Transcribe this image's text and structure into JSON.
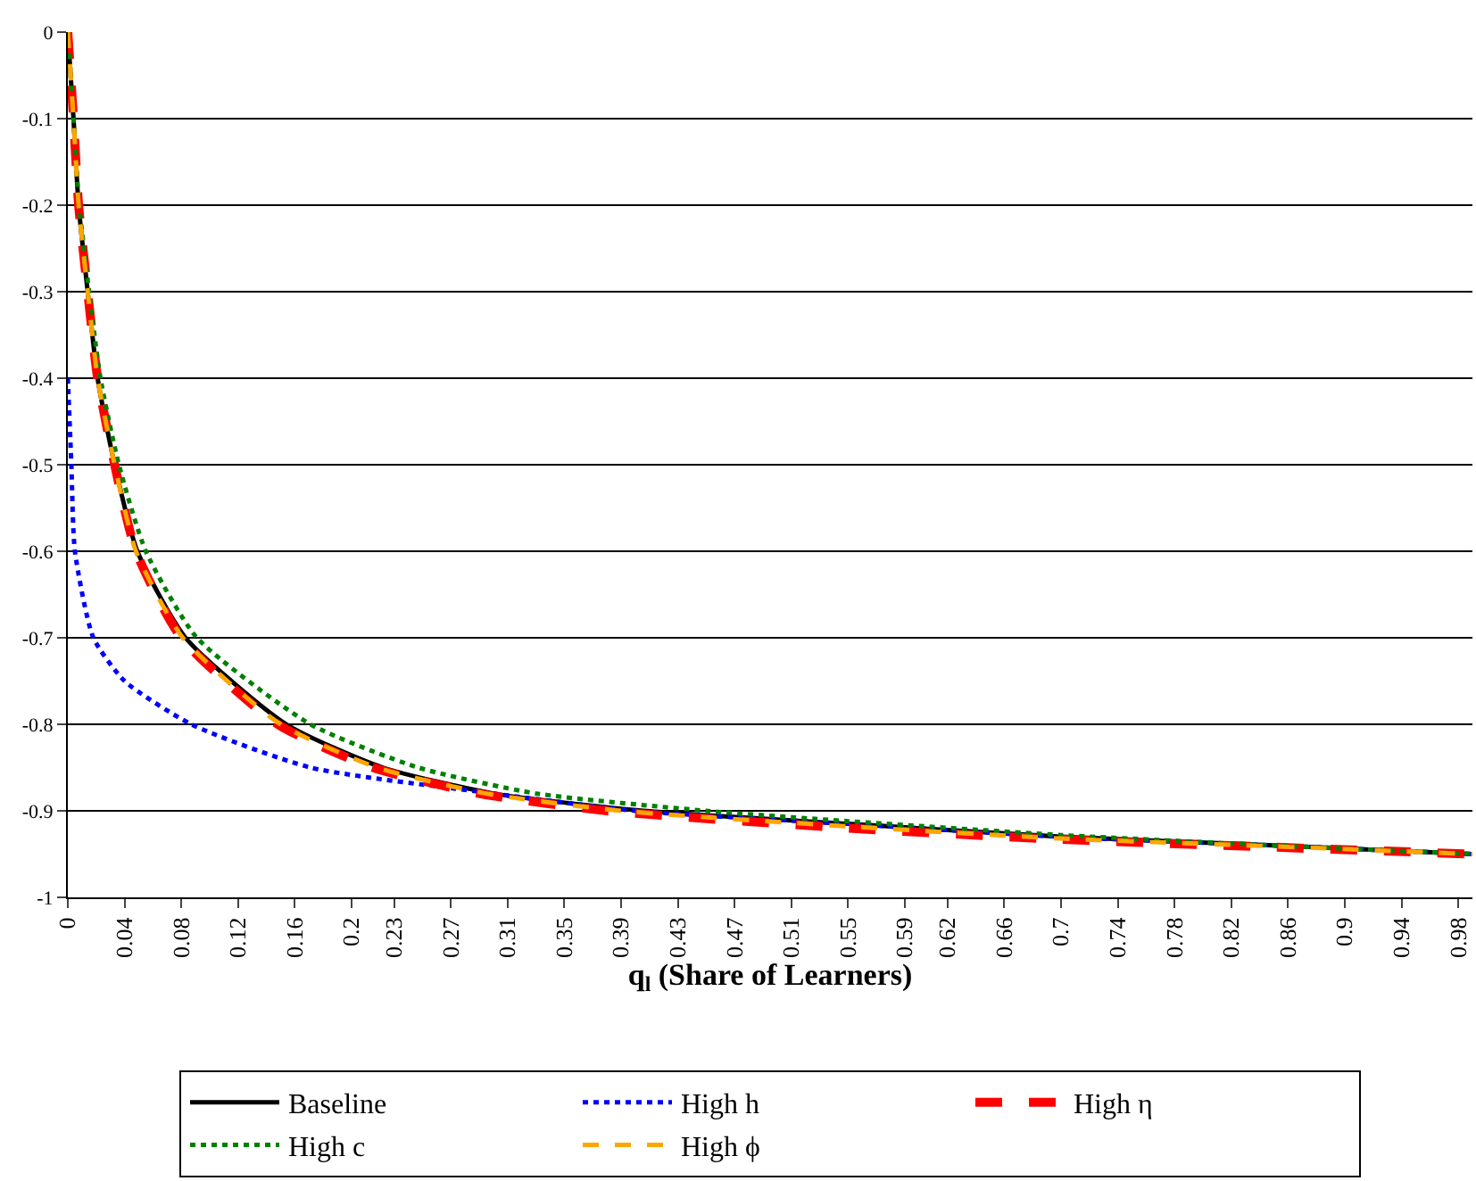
{
  "chart_data": {
    "type": "line",
    "xlabel": "q$_{l}$ (Share of Learners)",
    "xlim": [
      0,
      0.99
    ],
    "ylim": [
      -1,
      0
    ],
    "xticks": [
      0,
      0.04,
      0.08,
      0.12,
      0.16,
      0.2,
      0.23,
      0.27,
      0.31,
      0.35,
      0.39,
      0.43,
      0.47,
      0.51,
      0.55,
      0.59,
      0.62,
      0.66,
      0.7,
      0.74,
      0.78,
      0.82,
      0.86,
      0.9,
      0.94,
      0.98
    ],
    "yticks": [
      -1,
      -0.9,
      -0.8,
      -0.7,
      -0.6,
      -0.5,
      -0.4,
      -0.3,
      -0.2,
      -0.1,
      0
    ],
    "grid": "y",
    "legend": "bottom",
    "marker": "none",
    "series": [
      {
        "name": "Baseline",
        "color": "#000000",
        "line_style": "solid",
        "x": [
          0,
          0.004,
          0.0076,
          0.014,
          0.021,
          0.033,
          0.049,
          0.083,
          0.154,
          0.222,
          0.3,
          0.406,
          0.55,
          0.7,
          0.85,
          0.99
        ],
        "values": [
          0,
          -0.1,
          -0.2,
          -0.3,
          -0.4,
          -0.5,
          -0.6,
          -0.7,
          -0.8,
          -0.85,
          -0.88,
          -0.9,
          -0.915,
          -0.93,
          -0.94,
          -0.95
        ]
      },
      {
        "name": "High h",
        "color": "#0000ff",
        "line_style": "dotted",
        "x": [
          0,
          0.0025,
          0.005,
          0.018,
          0.04,
          0.087,
          0.171,
          0.3,
          0.4,
          0.55,
          0.7,
          0.85,
          0.99
        ],
        "values": [
          -0.4,
          -0.5,
          -0.6,
          -0.7,
          -0.75,
          -0.8,
          -0.85,
          -0.88,
          -0.9,
          -0.915,
          -0.93,
          -0.94,
          -0.95
        ]
      },
      {
        "name": "High η",
        "color": "#ff0000",
        "line_style": "dashed",
        "x": [
          0,
          0.004,
          0.0076,
          0.014,
          0.021,
          0.033,
          0.048,
          0.08,
          0.148,
          0.215,
          0.29,
          0.38,
          0.55,
          0.7,
          0.85,
          0.99
        ],
        "values": [
          0,
          -0.1,
          -0.2,
          -0.3,
          -0.4,
          -0.5,
          -0.6,
          -0.7,
          -0.8,
          -0.85,
          -0.88,
          -0.9,
          -0.92,
          -0.933,
          -0.942,
          -0.95
        ]
      },
      {
        "name": "High c",
        "color": "#008000",
        "line_style": "dotted",
        "x": [
          0,
          0.004,
          0.008,
          0.015,
          0.023,
          0.036,
          0.055,
          0.091,
          0.171,
          0.247,
          0.33,
          0.45,
          0.55,
          0.7,
          0.85,
          0.99
        ],
        "values": [
          0,
          -0.1,
          -0.2,
          -0.3,
          -0.4,
          -0.5,
          -0.6,
          -0.7,
          -0.8,
          -0.85,
          -0.88,
          -0.9,
          -0.912,
          -0.928,
          -0.94,
          -0.95
        ]
      },
      {
        "name": "High ϕ",
        "color": "#ffa500",
        "line_style": "dashed",
        "x": [
          0,
          0.004,
          0.0076,
          0.014,
          0.021,
          0.033,
          0.048,
          0.081,
          0.15,
          0.218,
          0.295,
          0.39,
          0.55,
          0.7,
          0.85,
          0.99
        ],
        "values": [
          0,
          -0.1,
          -0.2,
          -0.3,
          -0.4,
          -0.5,
          -0.6,
          -0.7,
          -0.8,
          -0.85,
          -0.88,
          -0.9,
          -0.918,
          -0.932,
          -0.941,
          -0.95
        ]
      }
    ]
  }
}
